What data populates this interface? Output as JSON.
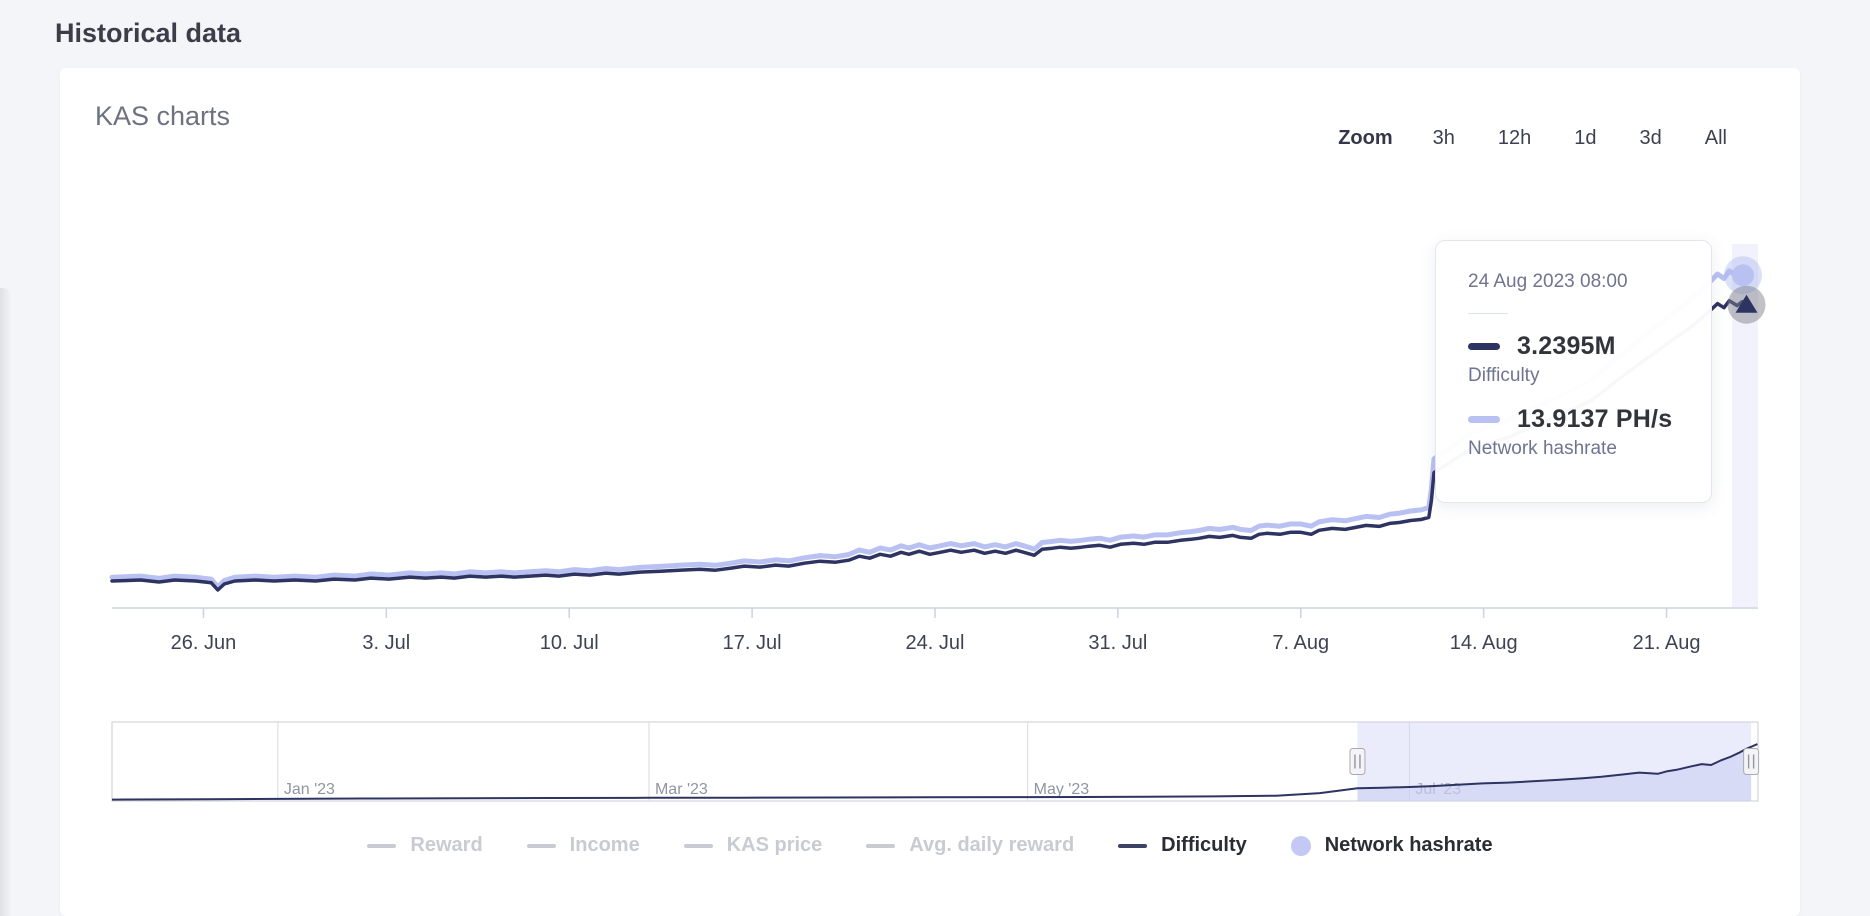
{
  "page": {
    "title": "Historical data"
  },
  "card": {
    "title": "KAS charts"
  },
  "range_selector": {
    "label": "Zoom",
    "buttons": [
      "3h",
      "12h",
      "1d",
      "3d",
      "All"
    ]
  },
  "tooltip": {
    "date": "24 Aug 2023 08:00",
    "rows": [
      {
        "value": "3.2395M",
        "label": "Difficulty",
        "color": "#2e3462"
      },
      {
        "value": "13.9137 PH/s",
        "label": "Network hashrate",
        "color": "#b9c1f2"
      }
    ]
  },
  "legend": {
    "items": [
      {
        "label": "Reward",
        "shape": "dash",
        "color": "#c9cbd2",
        "text_color": "#c9cbd2",
        "active": false
      },
      {
        "label": "Income",
        "shape": "dash",
        "color": "#c9cbd2",
        "text_color": "#c9cbd2",
        "active": false
      },
      {
        "label": "KAS price",
        "shape": "dash",
        "color": "#c9cbd2",
        "text_color": "#c9cbd2",
        "active": false
      },
      {
        "label": "Avg. daily reward",
        "shape": "dash",
        "color": "#c9cbd2",
        "text_color": "#c9cbd2",
        "active": false
      },
      {
        "label": "Difficulty",
        "shape": "dash",
        "color": "#3d4268",
        "text_color": "#2b2d35",
        "active": true
      },
      {
        "label": "Network hashrate",
        "shape": "circle",
        "color": "#c3c9f4",
        "text_color": "#2b2d35",
        "active": true
      }
    ]
  },
  "colors": {
    "difficulty_line": "#2e3462",
    "hashrate_line": "#b9c1f2",
    "axis_line": "#c9d4e2",
    "tick": "#ccd2de",
    "axis_label": "#3f4254",
    "nav_border": "#cbced4",
    "nav_gridline": "#d9dbe0",
    "nav_label": "#8f95a1",
    "selection_fill": "#ccd2f5",
    "crosshair_band": "#b9c0f0"
  },
  "chart_data": {
    "type": "line",
    "title": "KAS charts",
    "grid": false,
    "legend_position": "bottom",
    "x_axis": {
      "unit": "days since 2023-06-22 12:00",
      "range": [
        0,
        63
      ],
      "ticks": [
        {
          "d": 3.5,
          "label": "26. Jun"
        },
        {
          "d": 10.5,
          "label": "3. Jul"
        },
        {
          "d": 17.5,
          "label": "10. Jul"
        },
        {
          "d": 24.5,
          "label": "17. Jul"
        },
        {
          "d": 31.5,
          "label": "24. Jul"
        },
        {
          "d": 38.5,
          "label": "31. Jul"
        },
        {
          "d": 45.5,
          "label": "7. Aug"
        },
        {
          "d": 52.5,
          "label": "14. Aug"
        },
        {
          "d": 59.5,
          "label": "21. Aug"
        }
      ]
    },
    "series": [
      {
        "name": "Difficulty",
        "unit": "M",
        "color": "#2e3462",
        "width": 3.5,
        "marker": "triangle",
        "axis_range": [
          0.53,
          4.55
        ],
        "last_label": "3.2395M",
        "points": [
          [
            0,
            0.771
          ],
          [
            1.1,
            0.78
          ],
          [
            1.8,
            0.762
          ],
          [
            2.4,
            0.78
          ],
          [
            3.2,
            0.771
          ],
          [
            3.8,
            0.755
          ],
          [
            4.05,
            0.691
          ],
          [
            4.3,
            0.744
          ],
          [
            4.7,
            0.771
          ],
          [
            5.5,
            0.78
          ],
          [
            6.2,
            0.771
          ],
          [
            7,
            0.78
          ],
          [
            7.8,
            0.771
          ],
          [
            8.5,
            0.788
          ],
          [
            9.3,
            0.78
          ],
          [
            9.9,
            0.797
          ],
          [
            10.6,
            0.788
          ],
          [
            11.4,
            0.806
          ],
          [
            12,
            0.797
          ],
          [
            12.6,
            0.806
          ],
          [
            13.1,
            0.797
          ],
          [
            13.7,
            0.815
          ],
          [
            14.3,
            0.806
          ],
          [
            14.9,
            0.815
          ],
          [
            15.4,
            0.806
          ],
          [
            16,
            0.815
          ],
          [
            16.6,
            0.824
          ],
          [
            17.1,
            0.815
          ],
          [
            17.7,
            0.833
          ],
          [
            18.3,
            0.824
          ],
          [
            18.9,
            0.842
          ],
          [
            19.4,
            0.833
          ],
          [
            20.2,
            0.851
          ],
          [
            21,
            0.859
          ],
          [
            21.7,
            0.868
          ],
          [
            22.5,
            0.877
          ],
          [
            23.1,
            0.868
          ],
          [
            23.7,
            0.886
          ],
          [
            24.2,
            0.904
          ],
          [
            24.8,
            0.895
          ],
          [
            25.4,
            0.913
          ],
          [
            25.9,
            0.904
          ],
          [
            26.5,
            0.93
          ],
          [
            27.1,
            0.948
          ],
          [
            27.7,
            0.939
          ],
          [
            28.2,
            0.957
          ],
          [
            28.6,
            0.993
          ],
          [
            29,
            0.975
          ],
          [
            29.4,
            1.01
          ],
          [
            29.8,
            0.993
          ],
          [
            30.2,
            1.028
          ],
          [
            30.5,
            1.01
          ],
          [
            30.9,
            1.037
          ],
          [
            31.3,
            1.01
          ],
          [
            31.7,
            1.028
          ],
          [
            32.1,
            1.046
          ],
          [
            32.5,
            1.028
          ],
          [
            33,
            1.046
          ],
          [
            33.4,
            1.019
          ],
          [
            33.8,
            1.037
          ],
          [
            34.2,
            1.019
          ],
          [
            34.6,
            1.046
          ],
          [
            34.9,
            1.028
          ],
          [
            35.3,
            1.001
          ],
          [
            35.6,
            1.055
          ],
          [
            36,
            1.064
          ],
          [
            36.3,
            1.073
          ],
          [
            36.7,
            1.064
          ],
          [
            37.1,
            1.073
          ],
          [
            37.4,
            1.082
          ],
          [
            37.8,
            1.09
          ],
          [
            38.2,
            1.073
          ],
          [
            38.6,
            1.099
          ],
          [
            39.1,
            1.108
          ],
          [
            39.5,
            1.099
          ],
          [
            39.9,
            1.117
          ],
          [
            40.4,
            1.117
          ],
          [
            40.9,
            1.135
          ],
          [
            41.3,
            1.144
          ],
          [
            41.6,
            1.153
          ],
          [
            42,
            1.17
          ],
          [
            42.4,
            1.161
          ],
          [
            42.9,
            1.179
          ],
          [
            43.2,
            1.161
          ],
          [
            43.6,
            1.153
          ],
          [
            43.9,
            1.188
          ],
          [
            44.2,
            1.197
          ],
          [
            44.7,
            1.188
          ],
          [
            45.1,
            1.206
          ],
          [
            45.5,
            1.206
          ],
          [
            45.9,
            1.188
          ],
          [
            46.2,
            1.224
          ],
          [
            46.7,
            1.241
          ],
          [
            47.2,
            1.232
          ],
          [
            47.6,
            1.25
          ],
          [
            48,
            1.268
          ],
          [
            48.5,
            1.259
          ],
          [
            48.9,
            1.286
          ],
          [
            49.3,
            1.295
          ],
          [
            49.7,
            1.312
          ],
          [
            50.1,
            1.321
          ],
          [
            50.4,
            1.339
          ],
          [
            50.5,
            1.49
          ],
          [
            50.6,
            1.739
          ],
          [
            52,
            1.95
          ],
          [
            53.5,
            2.06
          ],
          [
            55,
            2.21
          ],
          [
            56.6,
            2.38
          ],
          [
            58.1,
            2.65
          ],
          [
            59.4,
            2.87
          ],
          [
            60.6,
            3.07
          ],
          [
            61.2,
            3.195
          ],
          [
            61.45,
            3.249
          ],
          [
            61.7,
            3.213
          ],
          [
            61.9,
            3.275
          ],
          [
            62.2,
            3.231
          ],
          [
            62.4,
            3.266
          ],
          [
            62.56,
            3.2395
          ]
        ]
      },
      {
        "name": "Network hashrate",
        "unit": "PH/s",
        "color": "#b9c1f2",
        "width": 5,
        "marker": "circle",
        "axis_range": [
          2.23,
          18.03
        ],
        "derived_from": "Difficulty",
        "factor": 4.2948,
        "last_value": 13.9137,
        "last_label": "13.9137 PH/s"
      }
    ],
    "navigator": {
      "x_axis": {
        "unit": "days since 2022-12-05",
        "range": [
          0,
          263
        ],
        "ticks": [
          {
            "d": 26.5,
            "label": "Jan '23"
          },
          {
            "d": 85.8,
            "label": "Mar '23"
          },
          {
            "d": 146.3,
            "label": "May '23"
          },
          {
            "d": 207.3,
            "label": "Jul '23"
          }
        ]
      },
      "axis_range": [
        0,
        4.5
      ],
      "selection": [
        199,
        261.9
      ],
      "series": {
        "name": "Difficulty",
        "unit": "M",
        "color": "#2e3462",
        "points": [
          [
            0,
            0.08
          ],
          [
            15,
            0.1
          ],
          [
            26.5,
            0.12
          ],
          [
            40,
            0.14
          ],
          [
            57,
            0.16
          ],
          [
            70,
            0.17
          ],
          [
            85.8,
            0.18
          ],
          [
            100,
            0.19
          ],
          [
            115,
            0.2
          ],
          [
            130,
            0.21
          ],
          [
            146.3,
            0.22
          ],
          [
            155,
            0.23
          ],
          [
            165,
            0.24
          ],
          [
            176,
            0.26
          ],
          [
            186,
            0.3
          ],
          [
            193,
            0.45
          ],
          [
            199,
            0.73
          ],
          [
            203,
            0.76
          ],
          [
            207.3,
            0.8
          ],
          [
            211,
            0.85
          ],
          [
            215,
            0.92
          ],
          [
            219,
            1.0
          ],
          [
            223,
            1.05
          ],
          [
            227,
            1.12
          ],
          [
            231,
            1.2
          ],
          [
            235,
            1.3
          ],
          [
            238,
            1.38
          ],
          [
            241,
            1.5
          ],
          [
            244,
            1.62
          ],
          [
            247,
            1.55
          ],
          [
            248.5,
            1.7
          ],
          [
            250,
            1.78
          ],
          [
            252,
            1.95
          ],
          [
            254,
            2.1
          ],
          [
            255.5,
            2.05
          ],
          [
            257,
            2.3
          ],
          [
            258.5,
            2.5
          ],
          [
            260,
            2.75
          ],
          [
            261,
            2.95
          ],
          [
            262,
            3.1
          ],
          [
            262.9,
            3.24
          ]
        ]
      }
    }
  }
}
